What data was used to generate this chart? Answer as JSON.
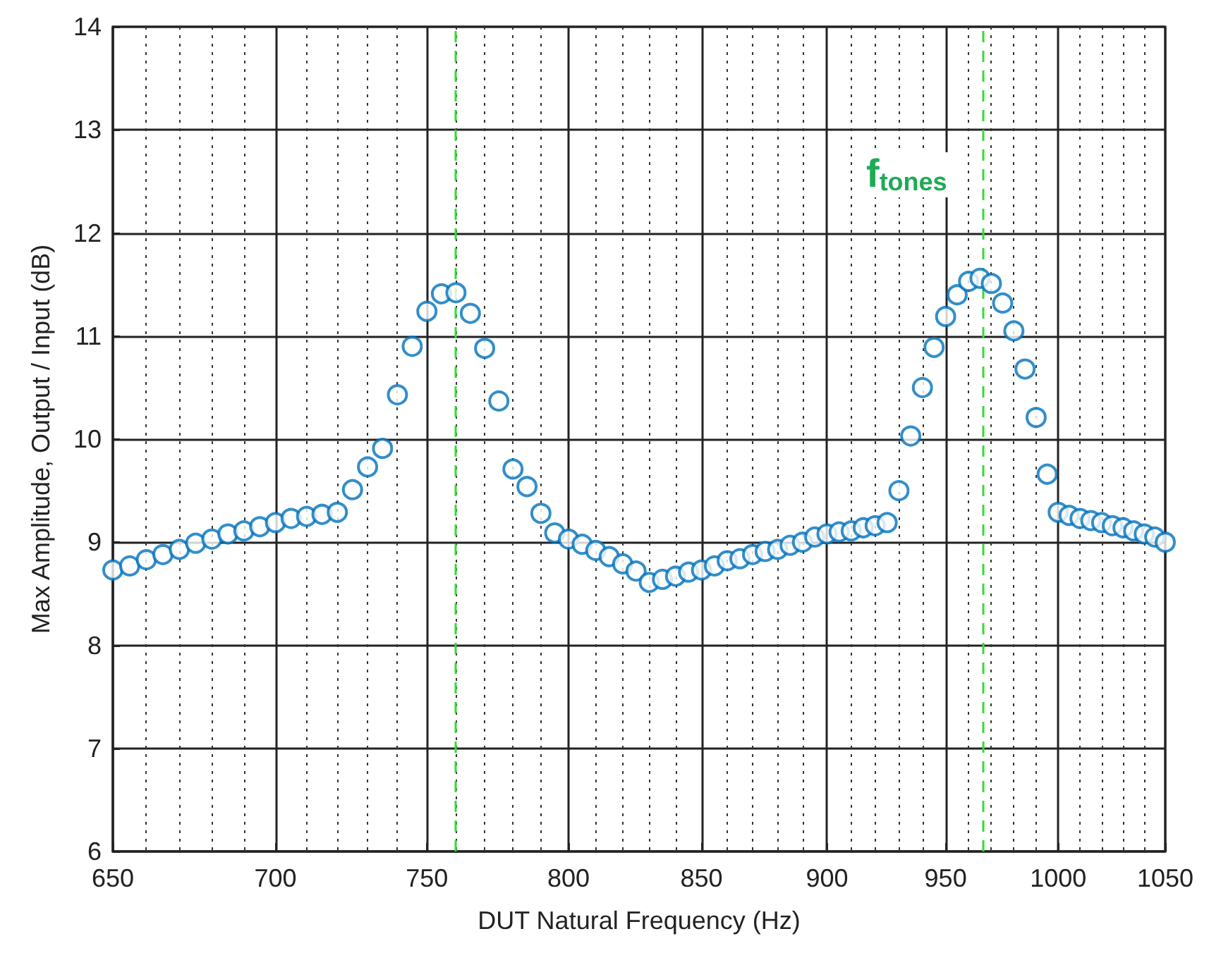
{
  "chart_data": {
    "type": "scatter",
    "xlabel": "DUT Natural Frequency (Hz)",
    "ylabel": "Max Amplitude, Output / Input (dB)",
    "log": "x",
    "grid": true,
    "marker": "circle",
    "xlim": [
      650,
      1050
    ],
    "ylim": [
      6,
      14
    ],
    "xticks": [
      650,
      {
        "value": 660,
        "label": null
      },
      {
        "value": 670,
        "label": null
      },
      {
        "value": 680,
        "label": null
      },
      {
        "value": 690,
        "label": null
      },
      700,
      {
        "value": 710,
        "label": null
      },
      {
        "value": 720,
        "label": null
      },
      {
        "value": 730,
        "label": null
      },
      {
        "value": 740,
        "label": null
      },
      750,
      {
        "value": 760,
        "label": null
      },
      {
        "value": 770,
        "label": null
      },
      {
        "value": 780,
        "label": null
      },
      {
        "value": 790,
        "label": null
      },
      800,
      {
        "value": 810,
        "label": null
      },
      {
        "value": 820,
        "label": null
      },
      {
        "value": 830,
        "label": null
      },
      {
        "value": 840,
        "label": null
      },
      850,
      {
        "value": 860,
        "label": null
      },
      {
        "value": 870,
        "label": null
      },
      {
        "value": 880,
        "label": null
      },
      {
        "value": 890,
        "label": null
      },
      900,
      {
        "value": 910,
        "label": null
      },
      {
        "value": 920,
        "label": null
      },
      {
        "value": 930,
        "label": null
      },
      {
        "value": 940,
        "label": null
      },
      950,
      {
        "value": 960,
        "label": null
      },
      {
        "value": 970,
        "label": null
      },
      {
        "value": 980,
        "label": null
      },
      {
        "value": 990,
        "label": null
      },
      1000,
      {
        "value": 1010,
        "label": null
      },
      {
        "value": 1020,
        "label": null
      },
      {
        "value": 1030,
        "label": null
      },
      {
        "value": 1040,
        "label": null
      },
      1050
    ],
    "yticks": [
      6,
      7,
      8,
      9,
      10,
      11,
      12,
      13,
      14
    ],
    "x": [
      650,
      655,
      660,
      665,
      670,
      675,
      680,
      685,
      690,
      695,
      700,
      705,
      710,
      715,
      720,
      725,
      730,
      735,
      740,
      745,
      750,
      755,
      760,
      765,
      770,
      775,
      780,
      785,
      790,
      795,
      800,
      805,
      810,
      815,
      820,
      825,
      830,
      835,
      840,
      845,
      850,
      855,
      860,
      865,
      870,
      875,
      880,
      885,
      890,
      895,
      900,
      905,
      910,
      915,
      920,
      925,
      930,
      935,
      940,
      945,
      950,
      955,
      960,
      965,
      970,
      975,
      980,
      985,
      990,
      995,
      1000,
      1005,
      1010,
      1015,
      1020,
      1025,
      1030,
      1035,
      1040,
      1045,
      1050
    ],
    "series": [
      {
        "color": "#0072bd",
        "values": [
          8.73,
          8.77,
          8.83,
          8.88,
          8.93,
          8.99,
          9.03,
          9.08,
          9.11,
          9.15,
          9.19,
          9.23,
          9.25,
          9.27,
          9.29,
          9.51,
          9.73,
          9.91,
          10.43,
          10.9,
          11.24,
          11.41,
          11.42,
          11.22,
          10.88,
          10.37,
          9.71,
          9.54,
          9.28,
          9.09,
          9.03,
          8.98,
          8.92,
          8.86,
          8.79,
          8.72,
          8.61,
          8.64,
          8.67,
          8.71,
          8.73,
          8.77,
          8.82,
          8.84,
          8.88,
          8.91,
          8.93,
          8.97,
          9.0,
          9.05,
          9.08,
          9.1,
          9.11,
          9.14,
          9.16,
          9.19,
          9.5,
          10.03,
          10.5,
          10.89,
          11.19,
          11.4,
          11.53,
          11.56,
          11.51,
          11.32,
          11.05,
          10.68,
          10.21,
          9.66,
          9.29,
          9.26,
          9.23,
          9.21,
          9.19,
          9.16,
          9.14,
          9.11,
          9.08,
          9.05,
          9.0
        ]
      }
    ],
    "ref_lines": [
      {
        "axis": "x",
        "value": 760,
        "color": "#33dd33",
        "line_style": "dashed"
      },
      {
        "axis": "x",
        "value": 966,
        "color": "#33dd33",
        "line_style": "dashed"
      }
    ],
    "annotations": [
      "f$_{tones}$"
    ]
  }
}
